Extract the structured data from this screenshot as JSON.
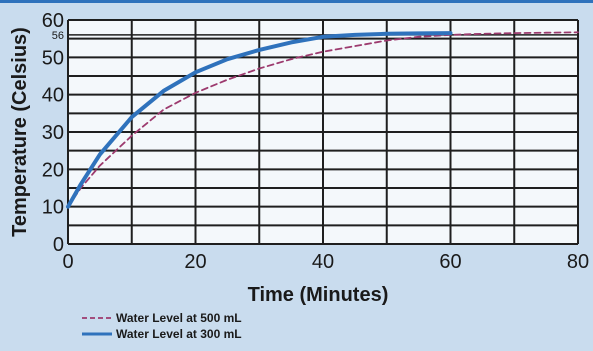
{
  "chart_data": {
    "type": "line",
    "title": "",
    "xlabel": "Time (Minutes)",
    "ylabel": "Temperature (Celsius)",
    "xlim": [
      0,
      80
    ],
    "ylim": [
      0,
      60
    ],
    "x_ticks": [
      "0",
      "20",
      "40",
      "60",
      "80"
    ],
    "y_ticks": [
      "0",
      "10",
      "20",
      "30",
      "40",
      "50",
      "60"
    ],
    "y_marker_label": "56",
    "y_marker_value": 56,
    "grid": true,
    "legend_position": "bottom-left",
    "series": [
      {
        "name": "Water Level at 500 mL",
        "style": "dashed",
        "color": "#9c3a6e",
        "x": [
          0,
          2,
          5,
          10,
          15,
          20,
          25,
          30,
          35,
          40,
          45,
          50,
          55,
          60,
          65,
          70,
          75,
          80
        ],
        "y": [
          10,
          15,
          21,
          29,
          36,
          40.5,
          44,
          47,
          49.5,
          51.5,
          53,
          54.5,
          55.5,
          56,
          56.3,
          56.5,
          56.6,
          56.7
        ]
      },
      {
        "name": "Water Level at 300 mL",
        "style": "solid",
        "color": "#2f72bc",
        "x": [
          0,
          2,
          5,
          10,
          15,
          20,
          25,
          30,
          35,
          40,
          45,
          50,
          55,
          60
        ],
        "y": [
          10,
          16,
          24,
          34,
          41,
          46,
          49.5,
          52,
          54,
          55.5,
          56,
          56.3,
          56.4,
          56.5
        ]
      }
    ]
  }
}
